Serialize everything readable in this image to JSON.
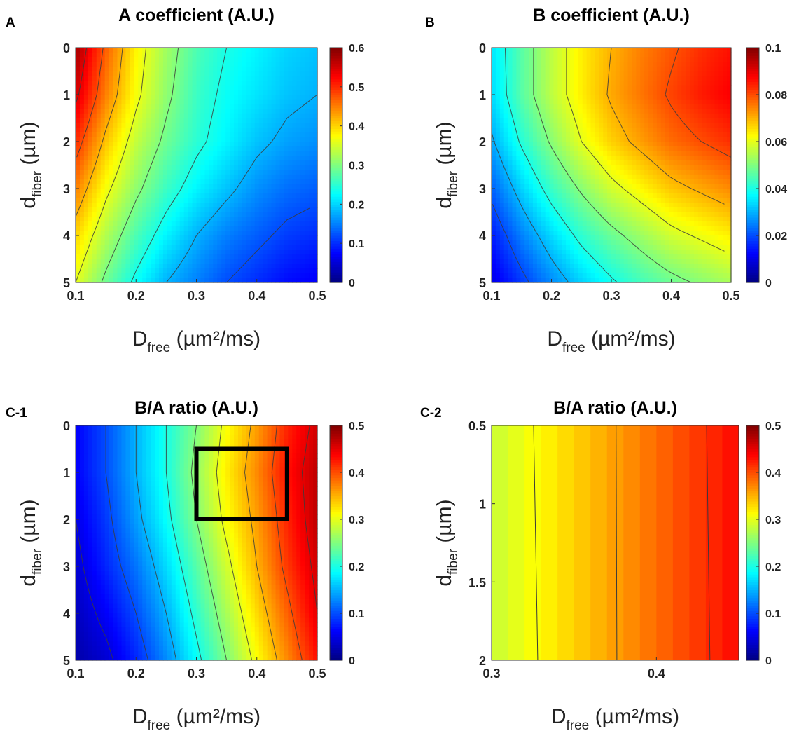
{
  "chart_data": [
    {
      "panel_label": "A",
      "type": "heatmap",
      "title": "A coefficient (A.U.)",
      "xlabel": "D",
      "xlabel_sub": "free",
      "xlabel_unit": "(µm²/ms)",
      "ylabel": "d",
      "ylabel_sub": "fiber",
      "ylabel_unit": "(µm)",
      "xlim": [
        0.1,
        0.5
      ],
      "ylim": [
        0,
        5
      ],
      "y_reversed": true,
      "xticks": [
        "0.1",
        "0.2",
        "0.3",
        "0.4",
        "0.5"
      ],
      "yticks": [
        "0",
        "1",
        "2",
        "3",
        "4",
        "5"
      ],
      "clim": [
        0,
        0.6
      ],
      "cticks": [
        "0",
        "0.1",
        "0.2",
        "0.3",
        "0.4",
        "0.5",
        "0.6"
      ],
      "colormap": "jet",
      "contour_lines": true,
      "value_grid_note": "rows = d_fiber 0..5 step 1, cols = D_free 0.1..0.5 step 0.05",
      "values": [
        [
          0.58,
          0.47,
          0.38,
          0.32,
          0.27,
          0.24,
          0.22,
          0.2,
          0.19
        ],
        [
          0.55,
          0.45,
          0.37,
          0.31,
          0.26,
          0.23,
          0.21,
          0.19,
          0.18
        ],
        [
          0.5,
          0.41,
          0.34,
          0.29,
          0.25,
          0.22,
          0.19,
          0.17,
          0.16
        ],
        [
          0.45,
          0.37,
          0.31,
          0.26,
          0.22,
          0.19,
          0.16,
          0.14,
          0.13
        ],
        [
          0.4,
          0.33,
          0.27,
          0.22,
          0.18,
          0.15,
          0.13,
          0.11,
          0.1
        ],
        [
          0.36,
          0.29,
          0.23,
          0.18,
          0.15,
          0.12,
          0.1,
          0.08,
          0.07
        ]
      ]
    },
    {
      "panel_label": "B",
      "type": "heatmap",
      "title": "B coefficient (A.U.)",
      "xlabel": "D",
      "xlabel_sub": "free",
      "xlabel_unit": "(µm²/ms)",
      "ylabel": "d",
      "ylabel_sub": "fiber",
      "ylabel_unit": "(µm)",
      "xlim": [
        0.1,
        0.5
      ],
      "ylim": [
        0,
        5
      ],
      "y_reversed": true,
      "xticks": [
        "0.1",
        "0.2",
        "0.3",
        "0.4",
        "0.5"
      ],
      "yticks": [
        "0",
        "1",
        "2",
        "3",
        "4",
        "5"
      ],
      "clim": [
        0,
        0.1
      ],
      "cticks": [
        "0",
        "0.02",
        "0.04",
        "0.06",
        "0.08",
        "0.1"
      ],
      "colormap": "jet",
      "contour_lines": true,
      "value_grid_note": "rows = d_fiber 0..5 step 1, cols = D_free 0.1..0.5 step 0.05",
      "values": [
        [
          0.035,
          0.046,
          0.056,
          0.064,
          0.07,
          0.075,
          0.079,
          0.083,
          0.086
        ],
        [
          0.034,
          0.046,
          0.056,
          0.064,
          0.071,
          0.076,
          0.081,
          0.085,
          0.088
        ],
        [
          0.029,
          0.041,
          0.051,
          0.06,
          0.067,
          0.072,
          0.077,
          0.08,
          0.083
        ],
        [
          0.022,
          0.033,
          0.043,
          0.051,
          0.058,
          0.063,
          0.068,
          0.071,
          0.074
        ],
        [
          0.015,
          0.025,
          0.034,
          0.042,
          0.048,
          0.053,
          0.058,
          0.061,
          0.064
        ],
        [
          0.01,
          0.018,
          0.026,
          0.033,
          0.039,
          0.044,
          0.048,
          0.051,
          0.054
        ]
      ]
    },
    {
      "panel_label": "C-1",
      "type": "heatmap",
      "title": "B/A ratio (A.U.)",
      "xlabel": "D",
      "xlabel_sub": "free",
      "xlabel_unit": "(µm²/ms)",
      "ylabel": "d",
      "ylabel_sub": "fiber",
      "ylabel_unit": "(µm)",
      "xlim": [
        0.1,
        0.5
      ],
      "ylim": [
        0,
        5
      ],
      "y_reversed": true,
      "xticks": [
        "0.1",
        "0.2",
        "0.3",
        "0.4",
        "0.5"
      ],
      "yticks": [
        "0",
        "1",
        "2",
        "3",
        "4",
        "5"
      ],
      "clim": [
        0,
        0.5
      ],
      "cticks": [
        "0",
        "0.1",
        "0.2",
        "0.3",
        "0.4",
        "0.5"
      ],
      "colormap": "jet",
      "contour_lines": true,
      "highlight_box": {
        "x": [
          0.3,
          0.45
        ],
        "y": [
          0.5,
          2
        ]
      },
      "value_grid_note": "rows = d_fiber 0..5 step 1, cols = D_free 0.1..0.5 step 0.05",
      "values": [
        [
          0.06,
          0.1,
          0.15,
          0.2,
          0.25,
          0.31,
          0.36,
          0.42,
          0.46
        ],
        [
          0.06,
          0.1,
          0.15,
          0.2,
          0.26,
          0.32,
          0.37,
          0.43,
          0.47
        ],
        [
          0.05,
          0.09,
          0.14,
          0.19,
          0.25,
          0.31,
          0.36,
          0.42,
          0.47
        ],
        [
          0.04,
          0.08,
          0.12,
          0.17,
          0.23,
          0.29,
          0.35,
          0.41,
          0.46
        ],
        [
          0.03,
          0.06,
          0.1,
          0.15,
          0.21,
          0.27,
          0.33,
          0.39,
          0.45
        ],
        [
          0.02,
          0.04,
          0.08,
          0.13,
          0.19,
          0.25,
          0.31,
          0.37,
          0.43
        ]
      ]
    },
    {
      "panel_label": "C-2",
      "type": "heatmap",
      "title": "B/A ratio (A.U.)",
      "xlabel": "D",
      "xlabel_sub": "free",
      "xlabel_unit": "(µm²/ms)",
      "ylabel": "d",
      "ylabel_sub": "fiber",
      "ylabel_unit": "(µm)",
      "xlim": [
        0.3,
        0.45
      ],
      "ylim": [
        0.5,
        2
      ],
      "y_reversed": true,
      "xticks": [
        "0.3",
        "0.4"
      ],
      "yticks": [
        "0.5",
        "1",
        "1.5",
        "2"
      ],
      "clim": [
        0,
        0.5
      ],
      "cticks": [
        "0",
        "0.1",
        "0.2",
        "0.3",
        "0.4",
        "0.5"
      ],
      "colormap": "jet",
      "contour_lines": true,
      "x_bands": [
        0.3,
        0.31,
        0.32,
        0.33,
        0.34,
        0.35,
        0.36,
        0.37,
        0.38,
        0.39,
        0.4,
        0.41,
        0.42,
        0.43,
        0.44
      ],
      "band_values": [
        0.29,
        0.3,
        0.31,
        0.32,
        0.33,
        0.34,
        0.35,
        0.36,
        0.37,
        0.38,
        0.39,
        0.4,
        0.41,
        0.42,
        0.43
      ]
    }
  ]
}
